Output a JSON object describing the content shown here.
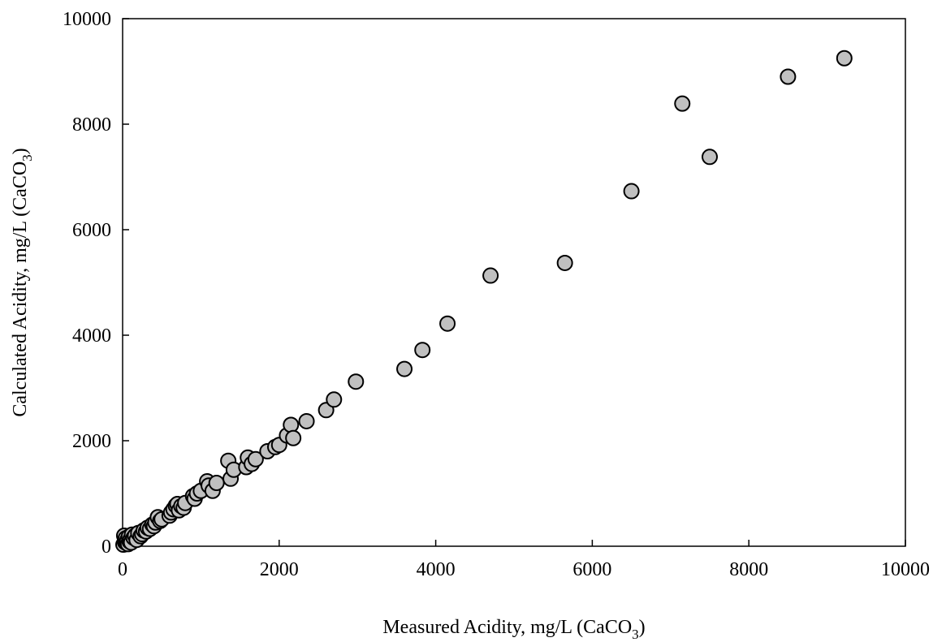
{
  "chart_data": {
    "type": "scatter",
    "title": "",
    "xlabel": {
      "main": "Measured Acidity, mg/L (CaCO",
      "sub": "3",
      "close": ")"
    },
    "ylabel": {
      "main": "Calculated Acidity, mg/L (CaCO",
      "sub": "3",
      "close": ")"
    },
    "xlim": [
      0,
      10000
    ],
    "ylim": [
      0,
      10000
    ],
    "xticks": [
      0,
      2000,
      4000,
      6000,
      8000,
      10000
    ],
    "yticks": [
      0,
      2000,
      4000,
      6000,
      8000,
      10000
    ],
    "xtick_labels": [
      "0",
      "2000",
      "4000",
      "6000",
      "8000",
      "10000"
    ],
    "ytick_labels": [
      "0",
      "2000",
      "4000",
      "6000",
      "8000",
      "10000"
    ],
    "grid": false,
    "legend": "none",
    "marker": {
      "shape": "circle",
      "fill": "#c0c0c0",
      "stroke": "#000000"
    },
    "points": [
      [
        10,
        30
      ],
      [
        20,
        200
      ],
      [
        30,
        80
      ],
      [
        40,
        150
      ],
      [
        50,
        60
      ],
      [
        60,
        110
      ],
      [
        70,
        40
      ],
      [
        80,
        180
      ],
      [
        90,
        90
      ],
      [
        100,
        130
      ],
      [
        110,
        70
      ],
      [
        120,
        220
      ],
      [
        140,
        160
      ],
      [
        160,
        200
      ],
      [
        180,
        120
      ],
      [
        200,
        250
      ],
      [
        230,
        190
      ],
      [
        250,
        230
      ],
      [
        270,
        300
      ],
      [
        300,
        280
      ],
      [
        320,
        350
      ],
      [
        350,
        330
      ],
      [
        380,
        410
      ],
      [
        400,
        380
      ],
      [
        420,
        450
      ],
      [
        450,
        550
      ],
      [
        480,
        480
      ],
      [
        500,
        510
      ],
      [
        600,
        580
      ],
      [
        620,
        640
      ],
      [
        650,
        700
      ],
      [
        680,
        770
      ],
      [
        700,
        800
      ],
      [
        720,
        680
      ],
      [
        750,
        760
      ],
      [
        780,
        730
      ],
      [
        800,
        820
      ],
      [
        900,
        950
      ],
      [
        920,
        900
      ],
      [
        950,
        1000
      ],
      [
        1000,
        1050
      ],
      [
        1080,
        1230
      ],
      [
        1100,
        1150
      ],
      [
        1150,
        1050
      ],
      [
        1200,
        1200
      ],
      [
        1350,
        1620
      ],
      [
        1380,
        1280
      ],
      [
        1420,
        1450
      ],
      [
        1580,
        1500
      ],
      [
        1600,
        1680
      ],
      [
        1650,
        1560
      ],
      [
        1700,
        1650
      ],
      [
        1850,
        1800
      ],
      [
        1950,
        1880
      ],
      [
        2000,
        1920
      ],
      [
        2100,
        2100
      ],
      [
        2150,
        2300
      ],
      [
        2180,
        2050
      ],
      [
        2350,
        2370
      ],
      [
        2600,
        2580
      ],
      [
        2700,
        2780
      ],
      [
        2980,
        3120
      ],
      [
        3600,
        3360
      ],
      [
        3830,
        3720
      ],
      [
        4150,
        4220
      ],
      [
        4700,
        5130
      ],
      [
        5650,
        5370
      ],
      [
        6500,
        6730
      ],
      [
        7150,
        8390
      ],
      [
        7500,
        7380
      ],
      [
        8500,
        8900
      ],
      [
        9220,
        9250
      ]
    ]
  }
}
